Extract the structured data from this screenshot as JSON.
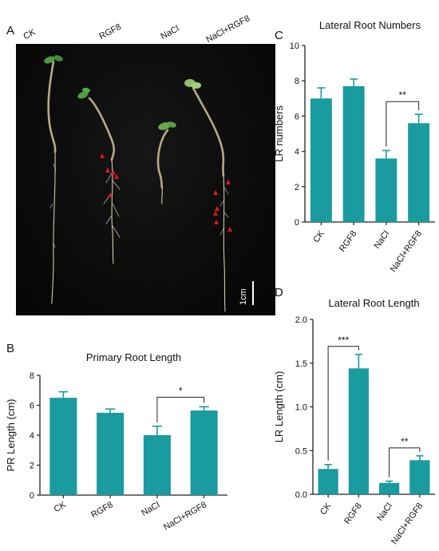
{
  "panels": {
    "a": "A",
    "b": "B",
    "c": "C",
    "d": "D"
  },
  "photo": {
    "labels": [
      "CK",
      "RGF8",
      "NaCl",
      "NaCl+RGF8"
    ],
    "scale_bar_label": "1cm"
  },
  "colors": {
    "bar": "#1a9ba0",
    "axis": "#222222",
    "marker": "#e0161e"
  },
  "chart_data": [
    {
      "id": "primary-root-length",
      "type": "bar",
      "title": "Primary Root Length",
      "xlabel": "",
      "ylabel": "PR Length (cm)",
      "categories": [
        "CK",
        "RGF8",
        "NaCl",
        "NaCl+RGF8"
      ],
      "values": [
        6.5,
        5.5,
        4.0,
        5.65
      ],
      "errors": [
        0.4,
        0.25,
        0.6,
        0.25
      ],
      "ylim": [
        0,
        8
      ],
      "yticks": [
        0,
        2,
        4,
        6,
        8
      ],
      "significance": [
        {
          "between": [
            2,
            3
          ],
          "label": "*"
        }
      ]
    },
    {
      "id": "lateral-root-numbers",
      "type": "bar",
      "title": "Lateral Root Numbers",
      "xlabel": "",
      "ylabel": "LR numbers",
      "categories": [
        "CK",
        "RGF8",
        "NaCl",
        "NaCl+RGF8"
      ],
      "values": [
        7.0,
        7.7,
        3.6,
        5.6
      ],
      "errors": [
        0.6,
        0.4,
        0.45,
        0.5
      ],
      "ylim": [
        0,
        10
      ],
      "yticks": [
        0,
        2,
        4,
        6,
        8,
        10
      ],
      "significance": [
        {
          "between": [
            2,
            3
          ],
          "label": "**"
        }
      ]
    },
    {
      "id": "lateral-root-length",
      "type": "bar",
      "title": "Lateral Root Length",
      "xlabel": "",
      "ylabel": "LR Length (cm)",
      "categories": [
        "CK",
        "RGF8",
        "NaCl",
        "NaCl+RGF8"
      ],
      "values": [
        0.29,
        1.44,
        0.13,
        0.39
      ],
      "errors": [
        0.05,
        0.16,
        0.02,
        0.05
      ],
      "ylim": [
        0,
        2.0
      ],
      "yticks": [
        "0.0",
        "0.5",
        "1.0",
        "1.5",
        "2.0"
      ],
      "significance": [
        {
          "between": [
            0,
            1
          ],
          "label": "***"
        },
        {
          "between": [
            2,
            3
          ],
          "label": "**"
        }
      ]
    }
  ]
}
